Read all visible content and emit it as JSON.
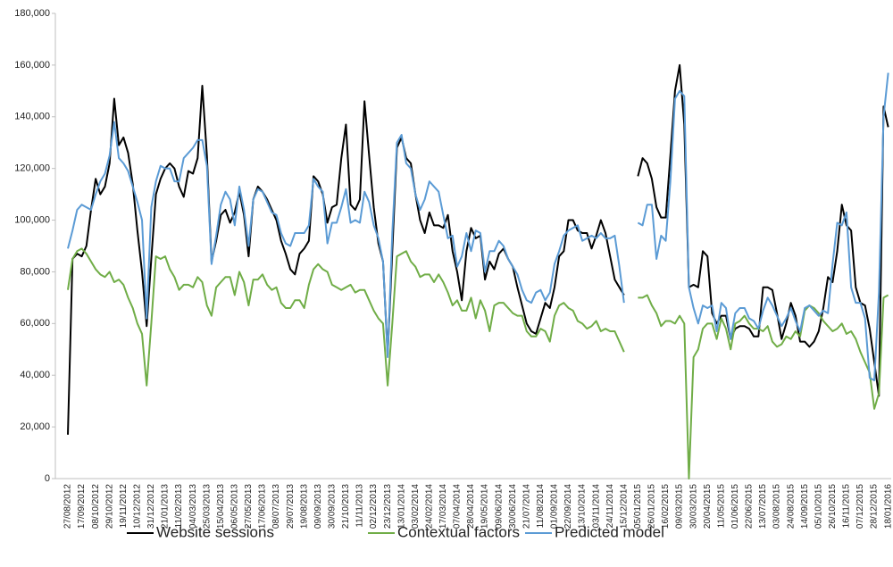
{
  "chart_data": {
    "type": "line",
    "categories": [
      "27/08/2012",
      null,
      null,
      "17/09/2012",
      null,
      null,
      "08/10/2012",
      null,
      null,
      "29/10/2012",
      null,
      null,
      "19/11/2012",
      null,
      null,
      "10/12/2012",
      null,
      null,
      "31/12/2012",
      null,
      null,
      "21/01/2013",
      null,
      null,
      "11/02/2013",
      null,
      null,
      "04/03/2013",
      null,
      null,
      "25/03/2013",
      null,
      null,
      "15/04/2013",
      null,
      null,
      "06/05/2013",
      null,
      null,
      "27/05/2013",
      null,
      null,
      "17/06/2013",
      null,
      null,
      "08/07/2013",
      null,
      null,
      "29/07/2013",
      null,
      null,
      "19/08/2013",
      null,
      null,
      "09/09/2013",
      null,
      null,
      "30/09/2013",
      null,
      null,
      "21/10/2013",
      null,
      null,
      "11/11/2013",
      null,
      null,
      "02/12/2013",
      null,
      null,
      "23/12/2013",
      null,
      null,
      "13/01/2014",
      null,
      null,
      "03/02/2014",
      null,
      null,
      "24/02/2014",
      null,
      null,
      "17/03/2014",
      null,
      null,
      "07/04/2014",
      null,
      null,
      "28/04/2014",
      null,
      null,
      "19/05/2014",
      null,
      null,
      "09/06/2014",
      null,
      null,
      "30/06/2014",
      null,
      null,
      "21/07/2014",
      null,
      null,
      "11/08/2014",
      null,
      null,
      "01/09/2014",
      null,
      null,
      "22/09/2014",
      null,
      null,
      "13/10/2014",
      null,
      null,
      "03/11/2014",
      null,
      null,
      "24/11/2014",
      null,
      null,
      "15/12/2014",
      null,
      null,
      "05/01/2015",
      null,
      null,
      "26/01/2015",
      null,
      null,
      "16/02/2015",
      null,
      null,
      "09/03/2015",
      null,
      null,
      "30/03/2015",
      null,
      null,
      "20/04/2015",
      null,
      null,
      "11/05/2015",
      null,
      null,
      "01/06/2015",
      null,
      null,
      "22/06/2015",
      null,
      null,
      "13/07/2015",
      null,
      null,
      "03/08/2015",
      null,
      null,
      "24/08/2015",
      null,
      null,
      "14/09/2015",
      null,
      null,
      "05/10/2015",
      null,
      null,
      "26/10/2015",
      null,
      null,
      "16/11/2015",
      null,
      null,
      "07/12/2015",
      null,
      null,
      "28/12/2015",
      null,
      null,
      "18/01/2016"
    ],
    "series": [
      {
        "name": "Website sessions",
        "color": "#000000",
        "values": [
          17000,
          85000,
          87000,
          86000,
          90000,
          104000,
          116000,
          110000,
          113000,
          122000,
          147000,
          129000,
          132000,
          126000,
          114000,
          96000,
          80000,
          59000,
          85000,
          110000,
          116000,
          120000,
          122000,
          120000,
          113000,
          109000,
          119000,
          118000,
          124000,
          152000,
          125000,
          84000,
          92000,
          102000,
          104000,
          99000,
          103000,
          111000,
          102000,
          86000,
          108000,
          113000,
          111000,
          108000,
          104000,
          100000,
          92000,
          87000,
          81000,
          79000,
          87000,
          89000,
          92000,
          117000,
          115000,
          110000,
          99000,
          105000,
          106000,
          124000,
          137000,
          106000,
          104000,
          108000,
          146000,
          125000,
          105000,
          91000,
          84000,
          48000,
          88000,
          128000,
          132000,
          124000,
          122000,
          110000,
          100000,
          95000,
          103000,
          98000,
          98000,
          97000,
          102000,
          88000,
          80000,
          69000,
          88000,
          97000,
          93000,
          94000,
          77000,
          84000,
          81000,
          87000,
          89000,
          85000,
          82000,
          74000,
          67000,
          60000,
          57000,
          56000,
          62000,
          68000,
          66000,
          74000,
          86000,
          88000,
          100000,
          100000,
          96000,
          95000,
          95000,
          89000,
          94000,
          100000,
          95000,
          86000,
          77000,
          74000,
          71000,
          null,
          null,
          117000,
          124000,
          122000,
          116000,
          105000,
          101000,
          101000,
          125000,
          150000,
          160000,
          137000,
          74000,
          75000,
          74000,
          88000,
          86000,
          64000,
          60000,
          63000,
          63000,
          54000,
          58000,
          59000,
          59000,
          58000,
          55000,
          55000,
          74000,
          74000,
          73000,
          64000,
          54000,
          60000,
          68000,
          63000,
          53000,
          53000,
          51000,
          53000,
          57000,
          66000,
          78000,
          76000,
          88000,
          106000,
          98000,
          96000,
          74000,
          68000,
          67000,
          58000,
          45000,
          32000,
          144000,
          136000
        ]
      },
      {
        "name": "Contextual factors",
        "color": "#70ad47",
        "values": [
          73000,
          85000,
          88000,
          89000,
          87000,
          84000,
          81000,
          79000,
          78000,
          80000,
          76000,
          77000,
          75000,
          70000,
          66000,
          60000,
          56000,
          36000,
          60000,
          86000,
          85000,
          86000,
          81000,
          78000,
          73000,
          75000,
          75000,
          74000,
          78000,
          76000,
          67000,
          63000,
          74000,
          76000,
          78000,
          78000,
          71000,
          80000,
          76000,
          67000,
          77000,
          77000,
          79000,
          75000,
          73000,
          74000,
          68000,
          66000,
          66000,
          69000,
          69000,
          66000,
          75000,
          81000,
          83000,
          81000,
          80000,
          75000,
          74000,
          73000,
          74000,
          75000,
          72000,
          73000,
          73000,
          69000,
          65000,
          62000,
          60000,
          36000,
          60000,
          86000,
          87000,
          88000,
          84000,
          82000,
          78000,
          79000,
          79000,
          76000,
          79000,
          76000,
          72000,
          67000,
          69000,
          65000,
          65000,
          70000,
          62000,
          69000,
          65000,
          57000,
          67000,
          68000,
          68000,
          66000,
          64000,
          63000,
          63000,
          57000,
          55000,
          55000,
          58000,
          57000,
          53000,
          63000,
          67000,
          68000,
          66000,
          65000,
          61000,
          60000,
          58000,
          59000,
          61000,
          57000,
          58000,
          57000,
          57000,
          53000,
          49000,
          null,
          null,
          70000,
          70000,
          71000,
          67000,
          64000,
          59000,
          61000,
          61000,
          60000,
          63000,
          60000,
          0,
          47000,
          50000,
          58000,
          60000,
          60000,
          54000,
          62000,
          58000,
          50000,
          60000,
          61000,
          63000,
          60000,
          58000,
          58000,
          57000,
          59000,
          53000,
          51000,
          52000,
          55000,
          54000,
          57000,
          55000,
          65000,
          67000,
          66000,
          64000,
          61000,
          59000,
          57000,
          58000,
          60000,
          56000,
          57000,
          54000,
          49000,
          45000,
          41000,
          27000,
          33000,
          70000,
          71000
        ]
      },
      {
        "name": "Predicted model",
        "color": "#5b9bd5",
        "values": [
          89000,
          96000,
          104000,
          106000,
          105000,
          104000,
          110000,
          115000,
          118000,
          125000,
          138000,
          124000,
          122000,
          119000,
          113000,
          107000,
          100000,
          62000,
          105000,
          115000,
          121000,
          120000,
          120000,
          115000,
          115000,
          124000,
          126000,
          128000,
          131000,
          131000,
          121000,
          83000,
          94000,
          106000,
          111000,
          108000,
          98000,
          113000,
          104000,
          90000,
          108000,
          112000,
          111000,
          107000,
          103000,
          102000,
          95000,
          91000,
          90000,
          95000,
          95000,
          95000,
          98000,
          116000,
          113000,
          111000,
          91000,
          99000,
          99000,
          105000,
          112000,
          99000,
          100000,
          99000,
          111000,
          107000,
          98000,
          93000,
          84000,
          47000,
          95000,
          130000,
          133000,
          122000,
          120000,
          110000,
          104000,
          108000,
          115000,
          113000,
          111000,
          102000,
          93000,
          94000,
          82000,
          86000,
          95000,
          88000,
          96000,
          95000,
          80000,
          88000,
          88000,
          92000,
          90000,
          85000,
          82000,
          79000,
          73000,
          69000,
          68000,
          72000,
          73000,
          69000,
          72000,
          83000,
          88000,
          94000,
          96000,
          97000,
          98000,
          92000,
          93000,
          94000,
          93000,
          95000,
          93000,
          93000,
          94000,
          82000,
          68000,
          null,
          null,
          99000,
          98000,
          106000,
          106000,
          85000,
          94000,
          92000,
          115000,
          147000,
          150000,
          148000,
          74000,
          66000,
          60000,
          67000,
          66000,
          67000,
          57000,
          68000,
          66000,
          54000,
          64000,
          66000,
          66000,
          62000,
          61000,
          58000,
          65000,
          70000,
          67000,
          63000,
          59000,
          62000,
          66000,
          61000,
          57000,
          66000,
          67000,
          65000,
          63000,
          65000,
          64000,
          83000,
          99000,
          98000,
          103000,
          74000,
          68000,
          68000,
          62000,
          39000,
          38000,
          72000,
          140000,
          157000
        ]
      }
    ],
    "ylim": [
      0,
      180000
    ],
    "yticks": [
      0,
      {
        "value": 20000,
        "label": "20,000"
      },
      {
        "value": 40000,
        "label": "40,000"
      },
      {
        "value": 60000,
        "label": "60,000"
      },
      {
        "value": 80000,
        "label": "80,000"
      },
      {
        "value": 100000,
        "label": "100,000"
      },
      {
        "value": 120000,
        "label": "120,000"
      },
      {
        "value": 140000,
        "label": "140,000"
      },
      {
        "value": 160000,
        "label": "160,000"
      },
      {
        "value": 180000,
        "label": "180,000"
      }
    ],
    "legend": "bottom"
  }
}
